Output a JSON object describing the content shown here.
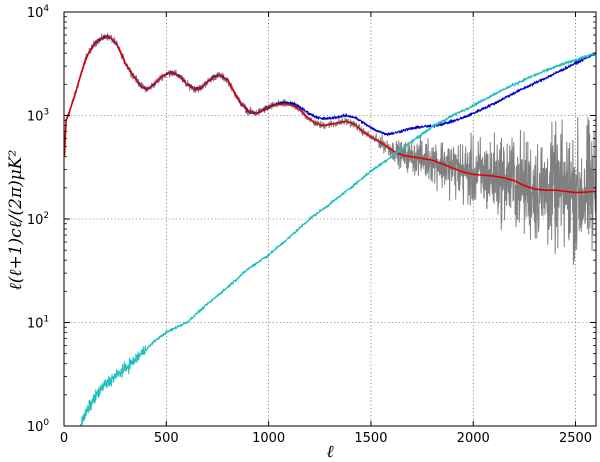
{
  "chart_data": {
    "type": "line",
    "title": "",
    "xlabel": "ℓ",
    "ylabel": "ℓ(ℓ+1)cℓ/(2π)μK²",
    "xlim": [
      0,
      2600
    ],
    "ylim": [
      1,
      10000
    ],
    "yscale": "log",
    "grid": true,
    "legend": "none",
    "x_ticks": [
      {
        "value": 0,
        "label": "0"
      },
      {
        "value": 500,
        "label": "500"
      },
      {
        "value": 1000,
        "label": "1000"
      },
      {
        "value": 1500,
        "label": "1500"
      },
      {
        "value": 2000,
        "label": "2000"
      },
      {
        "value": 2500,
        "label": "2500"
      }
    ],
    "y_ticks": [
      {
        "value": 1,
        "base": "10",
        "exp": "0"
      },
      {
        "value": 10,
        "base": "10",
        "exp": "1"
      },
      {
        "value": 100,
        "base": "10",
        "exp": "2"
      },
      {
        "value": 1000,
        "base": "10",
        "exp": "3"
      },
      {
        "value": 10000,
        "base": "10",
        "exp": "4"
      }
    ],
    "series": [
      {
        "color": "#808080",
        "noise": "heavy",
        "x": [
          2,
          10,
          20,
          30,
          50,
          80,
          110,
          150,
          180,
          210,
          230,
          260,
          300,
          340,
          380,
          410,
          440,
          480,
          520,
          540,
          570,
          600,
          640,
          670,
          700,
          730,
          760,
          800,
          830,
          860,
          900,
          940,
          980,
          1000,
          1040,
          1080,
          1120,
          1150,
          1180,
          1220,
          1260,
          1300,
          1340,
          1380,
          1420,
          1460,
          1500,
          1540,
          1580,
          1620,
          1660,
          1700,
          1750,
          1800,
          1850,
          1900,
          1950,
          2000,
          2050,
          2100,
          2150,
          2200,
          2250,
          2300,
          2350,
          2400,
          2450,
          2500,
          2550,
          2600
        ],
        "y": [
          400,
          900,
          1000,
          1150,
          1500,
          2400,
          3700,
          5000,
          5500,
          5800,
          5600,
          4800,
          3200,
          2400,
          1900,
          1800,
          2000,
          2400,
          2600,
          2550,
          2350,
          2000,
          1800,
          1850,
          2100,
          2350,
          2450,
          2200,
          1700,
          1350,
          1100,
          1050,
          1150,
          1200,
          1280,
          1300,
          1250,
          1150,
          1000,
          860,
          800,
          820,
          850,
          880,
          820,
          700,
          620,
          560,
          500,
          440,
          410,
          400,
          385,
          370,
          340,
          310,
          285,
          270,
          265,
          260,
          250,
          235,
          210,
          195,
          190,
          190,
          185,
          180,
          182,
          185
        ]
      },
      {
        "color": "#0000cc",
        "noise": "light",
        "x": [
          2,
          10,
          20,
          30,
          50,
          80,
          110,
          150,
          180,
          210,
          230,
          260,
          300,
          340,
          380,
          410,
          440,
          480,
          520,
          540,
          570,
          600,
          640,
          670,
          700,
          730,
          760,
          800,
          830,
          860,
          900,
          940,
          980,
          1000,
          1040,
          1080,
          1120,
          1150,
          1180,
          1220,
          1260,
          1300,
          1340,
          1380,
          1420,
          1460,
          1500,
          1540,
          1580,
          1620,
          1660,
          1700,
          1750,
          1800,
          1850,
          1900,
          1950,
          2000,
          2100,
          2200,
          2300,
          2400,
          2500,
          2600
        ],
        "y": [
          400,
          900,
          1000,
          1150,
          1500,
          2400,
          3700,
          5000,
          5500,
          5800,
          5600,
          4800,
          3200,
          2400,
          1900,
          1800,
          2000,
          2400,
          2600,
          2550,
          2350,
          2000,
          1800,
          1850,
          2100,
          2350,
          2450,
          2200,
          1700,
          1350,
          1100,
          1050,
          1150,
          1200,
          1300,
          1330,
          1300,
          1220,
          1100,
          990,
          930,
          940,
          970,
          1000,
          960,
          860,
          760,
          700,
          660,
          680,
          720,
          750,
          780,
          790,
          830,
          880,
          950,
          1050,
          1300,
          1650,
          2050,
          2550,
          3200,
          4000
        ]
      },
      {
        "color": "#dd0000",
        "noise": "none",
        "x": [
          2,
          10,
          20,
          30,
          50,
          80,
          110,
          150,
          180,
          210,
          230,
          260,
          300,
          340,
          380,
          410,
          440,
          480,
          520,
          540,
          570,
          600,
          640,
          670,
          700,
          730,
          760,
          800,
          830,
          860,
          900,
          940,
          980,
          1000,
          1040,
          1080,
          1120,
          1150,
          1180,
          1220,
          1260,
          1300,
          1340,
          1380,
          1420,
          1460,
          1500,
          1540,
          1580,
          1620,
          1660,
          1700,
          1750,
          1800,
          1850,
          1900,
          1950,
          2000,
          2050,
          2100,
          2150,
          2200,
          2250,
          2300,
          2350,
          2400,
          2450,
          2500,
          2550,
          2600
        ],
        "y": [
          400,
          900,
          1000,
          1150,
          1500,
          2400,
          3700,
          5000,
          5500,
          5800,
          5600,
          4800,
          3200,
          2400,
          1900,
          1800,
          2000,
          2400,
          2600,
          2550,
          2350,
          2000,
          1800,
          1850,
          2100,
          2350,
          2450,
          2200,
          1700,
          1350,
          1100,
          1050,
          1150,
          1200,
          1280,
          1300,
          1250,
          1150,
          1000,
          860,
          800,
          820,
          850,
          880,
          820,
          700,
          620,
          560,
          500,
          440,
          410,
          400,
          385,
          370,
          340,
          310,
          285,
          270,
          265,
          260,
          250,
          235,
          210,
          195,
          190,
          190,
          185,
          180,
          182,
          185
        ]
      },
      {
        "color": "#1fbfbf",
        "noise": "light",
        "x": [
          80,
          120,
          160,
          200,
          250,
          300,
          350,
          400,
          450,
          500,
          550,
          600,
          700,
          800,
          900,
          1000,
          1100,
          1200,
          1300,
          1400,
          1500,
          1600,
          1700,
          1800,
          1900,
          2000,
          2100,
          2200,
          2300,
          2400,
          2500,
          2600
        ],
        "y": [
          1.0,
          1.5,
          2.0,
          2.5,
          3.0,
          3.6,
          4.4,
          5.5,
          6.8,
          8.0,
          9.0,
          10.0,
          15,
          22,
          33,
          45,
          66,
          100,
          140,
          200,
          290,
          400,
          560,
          780,
          1000,
          1250,
          1600,
          2000,
          2450,
          2950,
          3450,
          4000
        ]
      }
    ]
  }
}
